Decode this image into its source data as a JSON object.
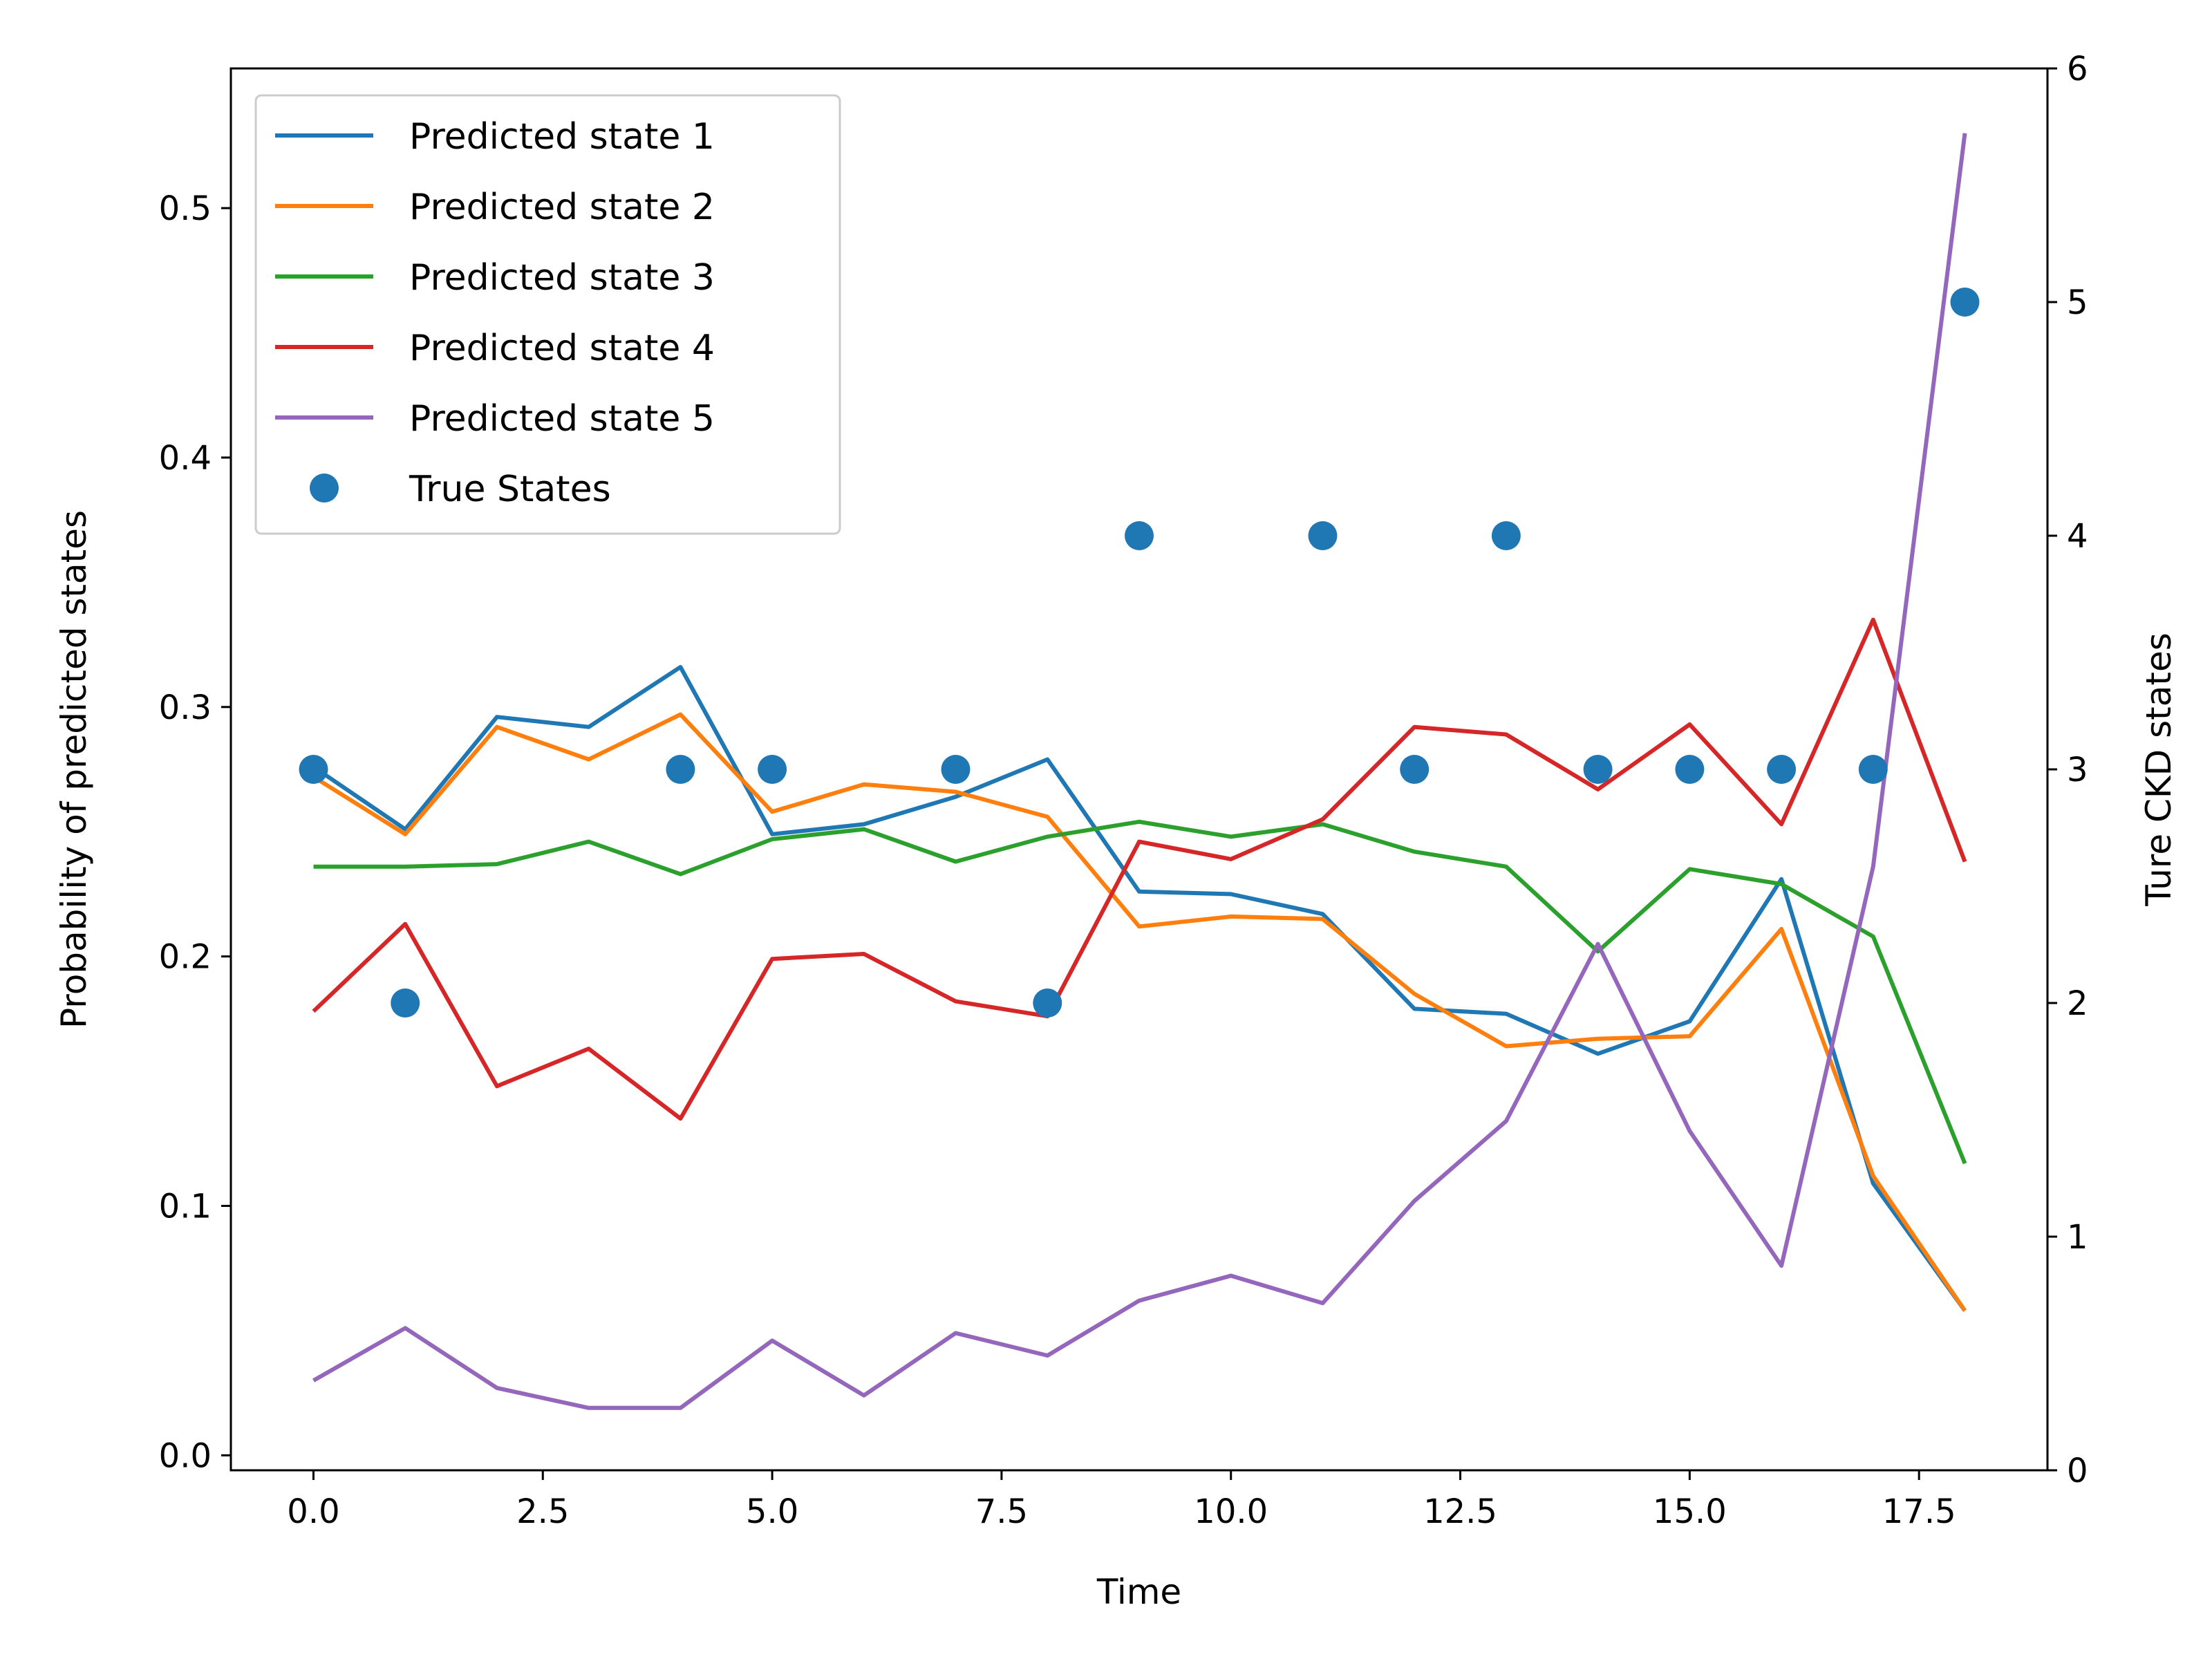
{
  "chart_data": {
    "type": "line",
    "title": "",
    "xlabel": "Time",
    "ylabel": "Probability of predicted states",
    "y2label": "Ture CKD states",
    "xlim": [
      -0.9,
      18.9
    ],
    "ylim": [
      -0.006,
      0.556
    ],
    "y2lim": [
      0,
      6
    ],
    "xticks": [
      0,
      2.5,
      5,
      7.5,
      10,
      12.5,
      15,
      17.5
    ],
    "xtick_labels": [
      "0.0",
      "2.5",
      "5.0",
      "7.5",
      "10.0",
      "12.5",
      "15.0",
      "17.5"
    ],
    "yticks": [
      0,
      0.1,
      0.2,
      0.3,
      0.4,
      0.5
    ],
    "ytick_labels": [
      "0.0",
      "0.1",
      "0.2",
      "0.3",
      "0.4",
      "0.5"
    ],
    "y2ticks": [
      0,
      1,
      2,
      3,
      4,
      5,
      6
    ],
    "y2tick_labels": [
      "0",
      "1",
      "2",
      "3",
      "4",
      "5",
      "6"
    ],
    "x": [
      0,
      1,
      2,
      3,
      4,
      5,
      6,
      7,
      8,
      9,
      10,
      11,
      12,
      13,
      14,
      15,
      16,
      17,
      18
    ],
    "legend_position": "upper-left",
    "series": [
      {
        "name": "Predicted state 1",
        "color": "#1f77b4",
        "values": [
          0.276,
          0.251,
          0.296,
          0.292,
          0.316,
          0.249,
          0.253,
          0.264,
          0.279,
          0.226,
          0.225,
          0.217,
          0.179,
          0.177,
          0.161,
          0.174,
          0.231,
          0.109,
          0.058
        ]
      },
      {
        "name": "Predicted state 2",
        "color": "#ff7f0e",
        "values": [
          0.272,
          0.249,
          0.292,
          0.279,
          0.297,
          0.258,
          0.269,
          0.266,
          0.256,
          0.212,
          0.216,
          0.215,
          0.185,
          0.164,
          0.167,
          0.168,
          0.211,
          0.112,
          0.058
        ]
      },
      {
        "name": "Predicted state 3",
        "color": "#2ca02c",
        "values": [
          0.236,
          0.236,
          0.237,
          0.246,
          0.233,
          0.247,
          0.251,
          0.238,
          0.248,
          0.254,
          0.248,
          0.253,
          0.242,
          0.236,
          0.202,
          0.235,
          0.229,
          0.208,
          0.117
        ]
      },
      {
        "name": "Predicted state 4",
        "color": "#d62728",
        "values": [
          0.178,
          0.213,
          0.148,
          0.163,
          0.135,
          0.199,
          0.201,
          0.182,
          0.176,
          0.246,
          0.239,
          0.255,
          0.292,
          0.289,
          0.267,
          0.293,
          0.253,
          0.335,
          0.238
        ]
      },
      {
        "name": "Predicted state 5",
        "color": "#9467bd",
        "values": [
          0.03,
          0.051,
          0.027,
          0.019,
          0.019,
          0.046,
          0.024,
          0.049,
          0.04,
          0.062,
          0.072,
          0.061,
          0.102,
          0.134,
          0.205,
          0.13,
          0.076,
          0.236,
          0.53
        ]
      }
    ],
    "true_states": {
      "name": "True States",
      "color": "#1f77b4",
      "axis": "right",
      "x": [
        0,
        1,
        4,
        5,
        7,
        8,
        9,
        11,
        12,
        13,
        14,
        15,
        16,
        17,
        18
      ],
      "values": [
        3,
        2,
        3,
        3,
        3,
        2,
        4,
        4,
        3,
        4,
        3,
        3,
        3,
        3,
        5
      ]
    }
  }
}
